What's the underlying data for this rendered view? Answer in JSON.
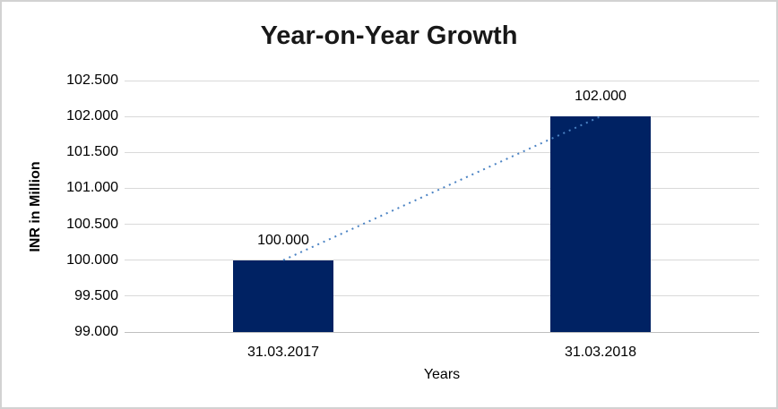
{
  "chart": {
    "colors": {
      "bar": "#002263",
      "trend_line": "#4a82c3",
      "gridline": "#d9d9d9",
      "axis_line": "#c0c0c0",
      "text": "#000000",
      "title_text": "#181818",
      "frame_border": "#d2d2d2",
      "background": "#ffffff"
    }
  },
  "chart_data": {
    "type": "bar",
    "title": "Year-on-Year Growth",
    "xlabel": "Years",
    "ylabel": "INR in Million",
    "categories": [
      "31.03.2017",
      "31.03.2018"
    ],
    "values": [
      100.0,
      102.0
    ],
    "data_labels": [
      "100.000",
      "102.000"
    ],
    "ylim": [
      99.0,
      102.5
    ],
    "y_tick_step": 0.5,
    "y_ticks": [
      {
        "label": "102.500",
        "value": 102.5
      },
      {
        "label": "102.000",
        "value": 102.0
      },
      {
        "label": "101.500",
        "value": 101.5
      },
      {
        "label": "101.000",
        "value": 101.0
      },
      {
        "label": "100.500",
        "value": 100.5
      },
      {
        "label": "100.000",
        "value": 100.0
      },
      {
        "label": "99.500",
        "value": 99.5
      },
      {
        "label": "99.000",
        "value": 99.0
      }
    ],
    "grid": true,
    "legend": false,
    "trendline": {
      "type": "linear",
      "style": "dotted",
      "connects": [
        "100.000",
        "102.000"
      ]
    }
  }
}
